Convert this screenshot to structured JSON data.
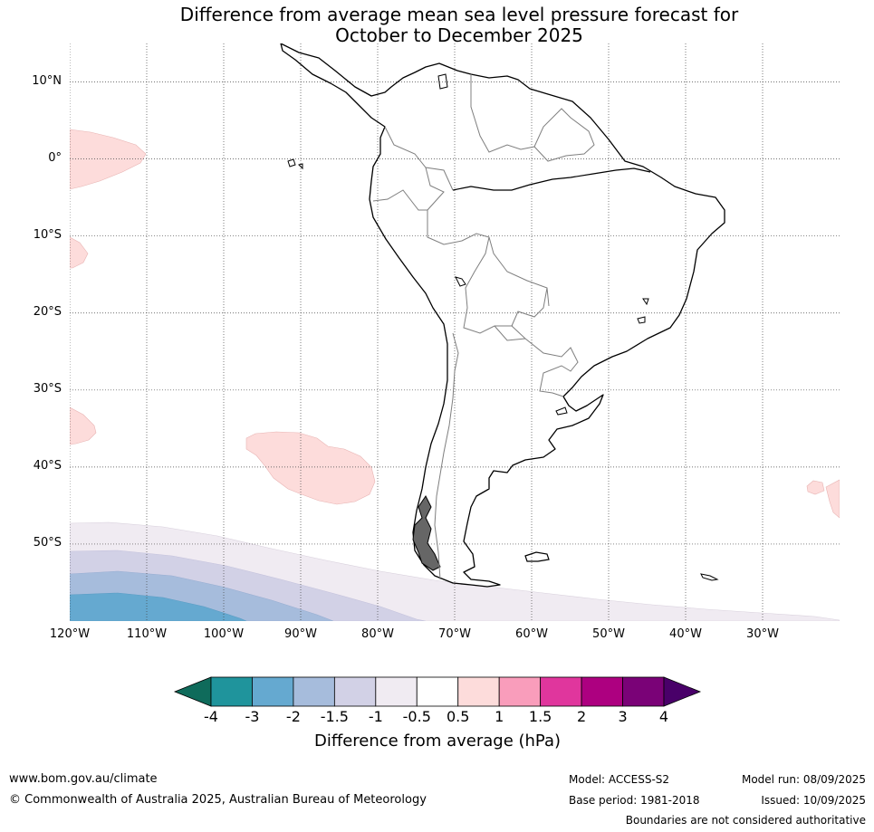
{
  "title": {
    "line1": "Difference from average mean sea level pressure forecast for",
    "line2": "October to December 2025"
  },
  "map": {
    "lat_ticks": [
      {
        "value": 10,
        "label": "10°N"
      },
      {
        "value": 0,
        "label": "0°"
      },
      {
        "value": -10,
        "label": "10°S"
      },
      {
        "value": -20,
        "label": "20°S"
      },
      {
        "value": -30,
        "label": "30°S"
      },
      {
        "value": -40,
        "label": "40°S"
      },
      {
        "value": -50,
        "label": "50°S"
      }
    ],
    "lon_ticks": [
      {
        "value": -120,
        "label": "120°W"
      },
      {
        "value": -110,
        "label": "110°W"
      },
      {
        "value": -100,
        "label": "100°W"
      },
      {
        "value": -90,
        "label": "90°W"
      },
      {
        "value": -80,
        "label": "80°W"
      },
      {
        "value": -70,
        "label": "70°W"
      },
      {
        "value": -60,
        "label": "60°W"
      },
      {
        "value": -50,
        "label": "50°W"
      },
      {
        "value": -40,
        "label": "40°W"
      },
      {
        "value": -30,
        "label": "30°W"
      }
    ],
    "extent": {
      "lon_min": -120,
      "lon_max": -20,
      "lat_min": -60,
      "lat_max": 15
    },
    "gridlines": true,
    "colors": {
      "anomaly_pos_0_5_1": "#fddcdb",
      "anomaly_neg_0_5_1": "#f0ebf2",
      "anomaly_neg_1_1_5": "#d2d1e6",
      "anomaly_neg_1_5_2": "#a6bcdc",
      "anomaly_neg_2_3": "#65a9d0",
      "land_outline": "#000000",
      "borders": "#7f7f7f"
    }
  },
  "colorbar": {
    "title": "Difference from average (hPa)",
    "ticks": [
      "-4",
      "-3",
      "-2",
      "-1.5",
      "-1",
      "-0.5",
      "0.5",
      "1",
      "1.5",
      "2",
      "3",
      "4"
    ],
    "colors": [
      "#0f6b5b",
      "#1f949c",
      "#65a9d0",
      "#a6bcdc",
      "#d2d1e6",
      "#f0ebf2",
      "#ffffff",
      "#fddcdb",
      "#f99dbb",
      "#e0369d",
      "#ad0080",
      "#7a0277",
      "#490069"
    ]
  },
  "footer": {
    "website": "www.bom.gov.au/climate",
    "copyright": "© Commonwealth of Australia 2025, Australian Bureau of Meteorology",
    "model": "Model: ACCESS-S2",
    "base_period": "Base period: 1981-2018",
    "model_run": "Model run: 08/09/2025",
    "issued": "Issued: 10/09/2025",
    "disclaimer": "Boundaries are not considered authoritative"
  }
}
